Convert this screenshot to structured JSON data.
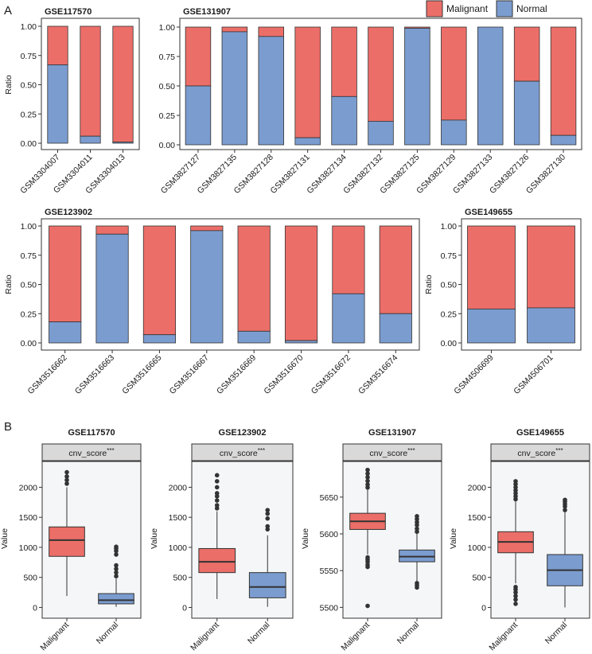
{
  "colors": {
    "malignant": "#ec6e68",
    "normal": "#7b9ccf",
    "strip": "#d9d9d9",
    "panel_bg": "#f4f6f7",
    "outline": "#333333"
  },
  "panel_labels": [
    "A",
    "B"
  ],
  "legend": {
    "items": [
      "Malignant",
      "Normal"
    ]
  },
  "chart_data": [
    {
      "type": "bar",
      "stacked": true,
      "panel": "A",
      "title": "GSE117570",
      "ylabel": "Ratio",
      "ylim": [
        0,
        1
      ],
      "yticks": [
        "0.00",
        "0.25",
        "0.50",
        "0.75",
        "1.00"
      ],
      "categories": [
        "GSM3304007",
        "GSM3304011",
        "GSM3304013"
      ],
      "series": [
        {
          "name": "Normal",
          "values": [
            0.67,
            0.06,
            0.01
          ]
        },
        {
          "name": "Malignant",
          "values": [
            0.33,
            0.94,
            0.99
          ]
        }
      ]
    },
    {
      "type": "bar",
      "stacked": true,
      "panel": "A",
      "title": "GSE131907",
      "ylabel": "",
      "ylim": [
        0,
        1
      ],
      "yticks": [
        "0.00",
        "0.25",
        "0.50",
        "0.75",
        "1.00"
      ],
      "categories": [
        "GSM3827127",
        "GSM3827135",
        "GSM3827128",
        "GSM3827131",
        "GSM3827134",
        "GSM3827132",
        "GSM3827125",
        "GSM3827129",
        "GSM3827133",
        "GSM3827126",
        "GSM3827130"
      ],
      "series": [
        {
          "name": "Normal",
          "values": [
            0.5,
            0.96,
            0.92,
            0.06,
            0.41,
            0.2,
            0.99,
            0.21,
            1.0,
            0.54,
            0.08
          ]
        },
        {
          "name": "Malignant",
          "values": [
            0.5,
            0.04,
            0.08,
            0.94,
            0.59,
            0.8,
            0.01,
            0.79,
            0.0,
            0.46,
            0.92
          ]
        }
      ]
    },
    {
      "type": "bar",
      "stacked": true,
      "panel": "A",
      "title": "GSE123902",
      "ylabel": "Ratio",
      "ylim": [
        0,
        1
      ],
      "yticks": [
        "0.00",
        "0.25",
        "0.50",
        "0.75",
        "1.00"
      ],
      "categories": [
        "GSM3516662",
        "GSM3516663",
        "GSM3516665",
        "GSM3516667",
        "GSM3516669",
        "GSM3516670",
        "GSM3516672",
        "GSM3516674"
      ],
      "series": [
        {
          "name": "Normal",
          "values": [
            0.18,
            0.93,
            0.07,
            0.96,
            0.1,
            0.02,
            0.42,
            0.25
          ]
        },
        {
          "name": "Malignant",
          "values": [
            0.82,
            0.07,
            0.93,
            0.04,
            0.9,
            0.98,
            0.58,
            0.75
          ]
        }
      ]
    },
    {
      "type": "bar",
      "stacked": true,
      "panel": "A",
      "title": "GSE149655",
      "ylabel": "Ratio",
      "ylim": [
        0,
        1
      ],
      "yticks": [
        "0.00",
        "0.25",
        "0.50",
        "0.75",
        "1.00"
      ],
      "categories": [
        "GSM4506699",
        "GSM4506701"
      ],
      "series": [
        {
          "name": "Normal",
          "values": [
            0.29,
            0.3
          ]
        },
        {
          "name": "Malignant",
          "values": [
            0.71,
            0.7
          ]
        }
      ]
    },
    {
      "type": "box",
      "panel": "B",
      "title": "GSE117570",
      "strip": "cnv_score",
      "strip_sup": "***",
      "ylabel": "Value",
      "ylim": [
        -60,
        2350
      ],
      "yticks": [
        0,
        500,
        1000,
        1500,
        2000
      ],
      "categories": [
        "Malignant",
        "Normal"
      ],
      "boxes": [
        {
          "name": "Malignant",
          "min": 190,
          "q1": 850,
          "median": 1120,
          "q3": 1340,
          "max": 2000,
          "outliers": [
            2060,
            2120,
            2180,
            2250
          ]
        },
        {
          "name": "Normal",
          "min": 10,
          "q1": 60,
          "median": 120,
          "q3": 230,
          "max": 480,
          "outliers": [
            520,
            580,
            640,
            700,
            880,
            940,
            980,
            1010
          ]
        }
      ]
    },
    {
      "type": "box",
      "panel": "B",
      "title": "GSE123902",
      "strip": "cnv_score",
      "strip_sup": "***",
      "ylabel": "Value",
      "ylim": [
        -60,
        2350
      ],
      "yticks": [
        0,
        500,
        1000,
        1500,
        2000
      ],
      "categories": [
        "Malignant",
        "Normal"
      ],
      "boxes": [
        {
          "name": "Malignant",
          "min": 140,
          "q1": 580,
          "median": 760,
          "q3": 980,
          "max": 1600,
          "outliers": [
            1650,
            1700,
            1780,
            1850,
            1900,
            2000,
            2100,
            2200
          ]
        },
        {
          "name": "Normal",
          "min": 10,
          "q1": 160,
          "median": 340,
          "q3": 580,
          "max": 1200,
          "outliers": [
            1300,
            1350,
            1480,
            1560,
            1620
          ]
        }
      ]
    },
    {
      "type": "box",
      "panel": "B",
      "title": "GSE131907",
      "strip": "cnv_score",
      "strip_sup": "***",
      "ylabel": "Value",
      "ylim": [
        5495,
        5692
      ],
      "yticks": [
        5500,
        5550,
        5600,
        5650
      ],
      "categories": [
        "Malignant",
        "Normal"
      ],
      "boxes": [
        {
          "name": "Malignant",
          "min": 5572,
          "q1": 5606,
          "median": 5617,
          "q3": 5628,
          "max": 5660,
          "outliers": [
            5502,
            5555,
            5558,
            5562,
            5565,
            5568,
            5663,
            5667,
            5672,
            5677,
            5682,
            5687
          ]
        },
        {
          "name": "Normal",
          "min": 5535,
          "q1": 5562,
          "median": 5569,
          "q3": 5578,
          "max": 5600,
          "outliers": [
            5527,
            5530,
            5533,
            5603,
            5607,
            5612,
            5616,
            5620,
            5624
          ]
        }
      ]
    },
    {
      "type": "box",
      "panel": "B",
      "title": "GSE149655",
      "strip": "cnv_score",
      "strip_sup": "***",
      "ylabel": "Value",
      "ylim": [
        -60,
        2350
      ],
      "yticks": [
        0,
        500,
        1000,
        1500,
        2000
      ],
      "categories": [
        "Malignant",
        "Normal"
      ],
      "boxes": [
        {
          "name": "Malignant",
          "min": 400,
          "q1": 910,
          "median": 1090,
          "q3": 1260,
          "max": 1760,
          "outliers": [
            60,
            130,
            190,
            250,
            300,
            340,
            1800,
            1850,
            1900,
            1950,
            2000,
            2050,
            2100
          ]
        },
        {
          "name": "Normal",
          "min": 0,
          "q1": 360,
          "median": 620,
          "q3": 880,
          "max": 1580,
          "outliers": [
            1620,
            1680,
            1720,
            1760,
            1790
          ]
        }
      ]
    }
  ]
}
